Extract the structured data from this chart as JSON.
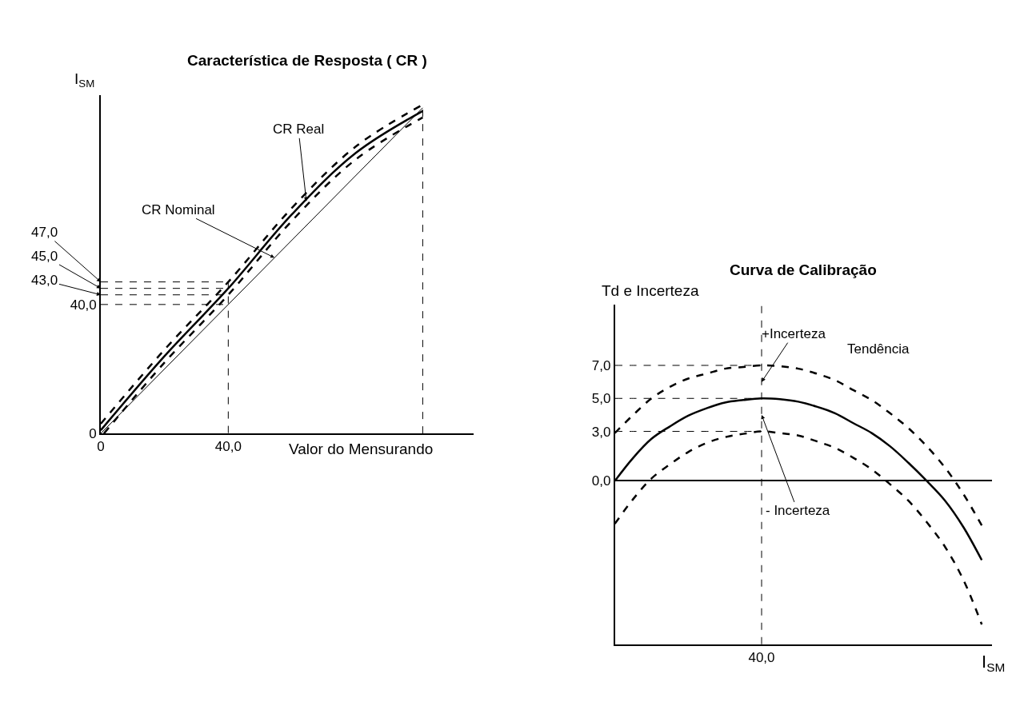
{
  "chart_data": [
    {
      "type": "line",
      "title": "Característica de Resposta ( CR )",
      "ylabel": "I$_{SM}$",
      "xlabel": "Valor do Mensurando",
      "xlim": [
        0,
        117
      ],
      "ylim": [
        0,
        105
      ],
      "xticks": [
        0,
        {
          "value": 40,
          "label": "40,0"
        }
      ],
      "yticks": [
        0,
        {
          "value": 40,
          "label": "40,0"
        }
      ],
      "series": [
        {
          "color": "#000000",
          "x": [
            0,
            101
          ],
          "values": [
            0,
            101
          ],
          "line_style": "solid"
        },
        {
          "color": "#000000",
          "x": [
            0,
            20,
            40,
            60,
            80,
            101
          ],
          "values": [
            1,
            24,
            45,
            68,
            87,
            100
          ],
          "line_style": "solid"
        },
        {
          "color": "#000000",
          "x": [
            0,
            20,
            40,
            60,
            80,
            101
          ],
          "values": [
            3,
            26,
            47,
            70,
            89,
            102
          ],
          "line_style": "dashed"
        },
        {
          "color": "#000000",
          "x": [
            1,
            20,
            40,
            60,
            80,
            101
          ],
          "values": [
            0,
            22,
            43,
            66,
            85,
            98
          ],
          "line_style": "dashed"
        },
        {
          "color": "#000000",
          "x": [
            0,
            40
          ],
          "values": [
            47,
            47
          ],
          "line_style": "dashed"
        },
        {
          "color": "#000000",
          "x": [
            0,
            40
          ],
          "values": [
            45,
            45
          ],
          "line_style": "dashed"
        },
        {
          "color": "#000000",
          "x": [
            0,
            40
          ],
          "values": [
            43,
            43
          ],
          "line_style": "dashed"
        },
        {
          "color": "#000000",
          "x": [
            0,
            40
          ],
          "values": [
            40,
            40
          ],
          "line_style": "dashed"
        },
        {
          "color": "#000000",
          "x": [
            40,
            40
          ],
          "values": [
            47,
            0
          ],
          "line_style": "dashed"
        },
        {
          "color": "#000000",
          "x": [
            101,
            101
          ],
          "values": [
            0,
            102
          ],
          "line_style": "dashed"
        }
      ],
      "annotations": [
        {
          "text": "CR Real",
          "x": 64.5,
          "y": 72
        },
        {
          "text": "CR Nominal",
          "x": 54.5,
          "y": 54.5
        },
        {
          "text": "47,0",
          "x": 0,
          "y": 47
        },
        {
          "text": "45,0",
          "x": 0,
          "y": 45
        },
        {
          "text": "43,0",
          "x": 0,
          "y": 43
        }
      ]
    },
    {
      "type": "line",
      "title": "Curva de Calibração",
      "ylabel": "Td e Incerteza",
      "xlabel": "I$_{SM}$",
      "categories": [
        null,
        null,
        null,
        null,
        null,
        null,
        null,
        null,
        "40,0",
        null,
        null,
        null,
        null,
        null,
        null,
        null,
        null,
        null,
        null,
        null,
        null
      ],
      "ylim": [
        -9.9,
        10.7
      ],
      "yticks": [
        {
          "value": 0,
          "label": "0,0"
        },
        {
          "value": 3,
          "label": "3,0"
        },
        {
          "value": 5,
          "label": "5,0"
        },
        {
          "value": 7,
          "label": "7,0"
        }
      ],
      "series": [
        {
          "color": "#000000",
          "values": [
            0,
            1.4,
            2.55,
            3.3,
            3.95,
            4.4,
            4.75,
            4.9,
            5.0,
            4.95,
            4.8,
            4.5,
            4.1,
            3.5,
            2.9,
            2.1,
            1.1,
            0.0,
            -1.2,
            -2.8,
            -4.8
          ],
          "line_style": "solid"
        },
        {
          "color": "#000000",
          "values": [
            2.9,
            4.0,
            5.0,
            5.7,
            6.2,
            6.5,
            6.8,
            6.9,
            7.0,
            6.95,
            6.8,
            6.5,
            6.1,
            5.5,
            4.9,
            4.1,
            3.2,
            2.1,
            0.8,
            -0.8,
            -2.7
          ],
          "line_style": "dashed"
        },
        {
          "color": "#000000",
          "values": [
            -2.6,
            -1.1,
            0.15,
            1.0,
            1.75,
            2.3,
            2.65,
            2.85,
            3.0,
            2.9,
            2.75,
            2.4,
            2.0,
            1.4,
            0.7,
            -0.2,
            -1.2,
            -2.5,
            -4.0,
            -6.0,
            -8.7
          ],
          "line_style": "dashed"
        },
        {
          "color": "#000000",
          "values": [
            7,
            7,
            7,
            7,
            7,
            7,
            7,
            7,
            7,
            null,
            null,
            null,
            null,
            null,
            null,
            null,
            null,
            null,
            null,
            null,
            null
          ],
          "line_style": "dashed"
        },
        {
          "color": "#000000",
          "values": [
            5,
            5,
            5,
            5,
            5,
            5,
            5,
            5,
            5,
            null,
            null,
            null,
            null,
            null,
            null,
            null,
            null,
            null,
            null,
            null,
            null
          ],
          "line_style": "dashed"
        },
        {
          "color": "#000000",
          "values": [
            3,
            3,
            3,
            3,
            3,
            3,
            3,
            3,
            3,
            null,
            null,
            null,
            null,
            null,
            null,
            null,
            null,
            null,
            null,
            null,
            null
          ],
          "line_style": "dashed"
        }
      ],
      "ref_lines": [
        {
          "axis": "x",
          "value": "40,0",
          "line_style": "dashed",
          "color": "#000000"
        }
      ],
      "annotations": [
        {
          "text": "+Incerteza",
          "x": "40,0",
          "y": 6
        },
        {
          "text": "- Incerteza",
          "x": "40,0",
          "y": 4
        },
        "Tendência"
      ]
    }
  ]
}
